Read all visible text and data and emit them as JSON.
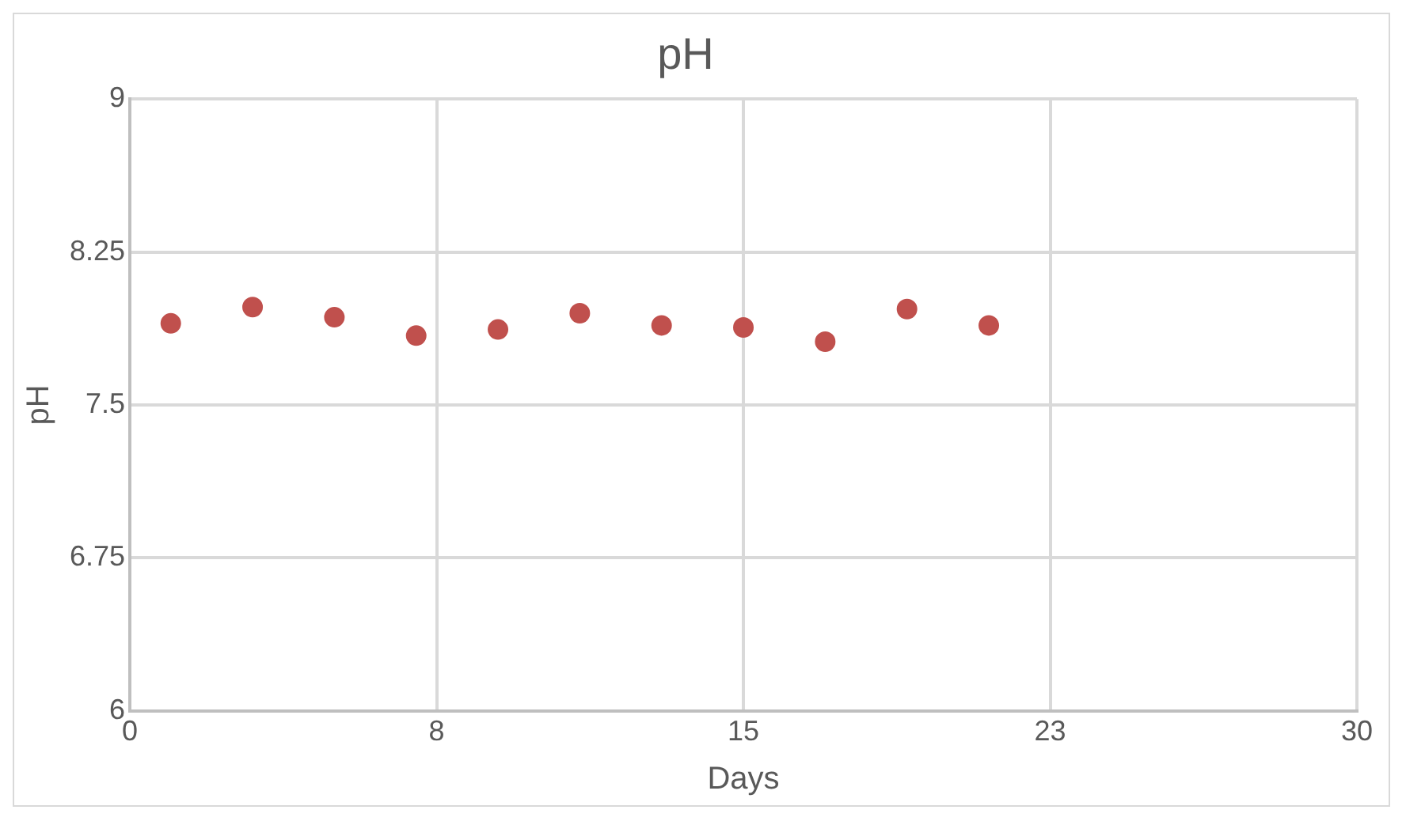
{
  "chart_data": {
    "type": "scatter",
    "title": "pH",
    "xlabel": "Days",
    "ylabel": "pH",
    "x": [
      1,
      3,
      5,
      7,
      9,
      11,
      13,
      15,
      17,
      19,
      21
    ],
    "values": [
      7.9,
      7.98,
      7.93,
      7.84,
      7.87,
      7.95,
      7.89,
      7.88,
      7.81,
      7.97,
      7.89
    ],
    "color": "#c0504d",
    "marker": "circle",
    "xlim": [
      0,
      30
    ],
    "xticks": [
      0,
      {
        "value": 7.5,
        "label": "8"
      },
      15,
      {
        "value": 22.5,
        "label": "23"
      },
      30
    ],
    "ylim": [
      6,
      9
    ],
    "yticks": [
      6,
      6.75,
      7.5,
      8.25,
      9
    ],
    "grid": true,
    "legend": false
  }
}
